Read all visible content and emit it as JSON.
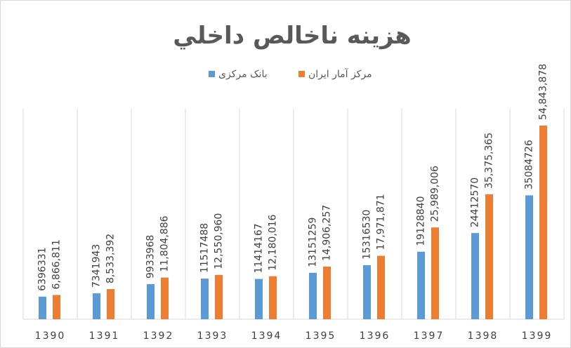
{
  "chart_data": {
    "type": "bar",
    "title": "هزینه ناخالص داخلي",
    "categories": [
      "1390",
      "1391",
      "1392",
      "1393",
      "1394",
      "1395",
      "1396",
      "1397",
      "1398",
      "1399"
    ],
    "series": [
      {
        "name": "بانک مرکزی",
        "color": "#5b9bd5",
        "values": [
          6396331,
          7341943,
          9933968,
          11517488,
          11414167,
          13151259,
          15316530,
          19128840,
          24412570,
          35084726
        ]
      },
      {
        "name": "مرکز آمار ایران",
        "color": "#ed7d31",
        "values": [
          6866811,
          8533392,
          11804886,
          12550960,
          12180016,
          14906257,
          17971871,
          25989006,
          35375365,
          54843878
        ],
        "value_labels": [
          "6,866,811",
          "8,533,392",
          "11,804,886",
          "12,550,960",
          "12,180,016",
          "14,906,257",
          "17,971,871",
          "25,989,006",
          "35,375,365",
          "54,843,878"
        ]
      }
    ],
    "grid": true
  }
}
